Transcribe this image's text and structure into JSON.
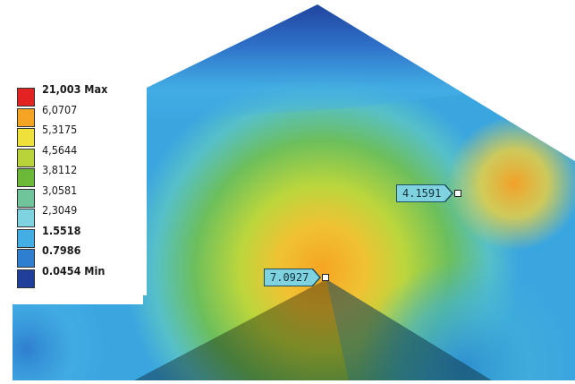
{
  "legend": {
    "colors": [
      "#e32322",
      "#f5a523",
      "#f0e03a",
      "#b8d43a",
      "#6cb93a",
      "#6fc49a",
      "#7fd3e0",
      "#43aee4",
      "#2e7fcf",
      "#1f3f9a"
    ],
    "labels": [
      {
        "text": "21,003 Max",
        "bold": true
      },
      {
        "text": "6,0707",
        "bold": false
      },
      {
        "text": "5,3175",
        "bold": false
      },
      {
        "text": "4,5644",
        "bold": false
      },
      {
        "text": "3,8112",
        "bold": false
      },
      {
        "text": "3,0581",
        "bold": false
      },
      {
        "text": "2,3049",
        "bold": false
      },
      {
        "text": "1.5518",
        "bold": true
      },
      {
        "text": "0.7986",
        "bold": true
      },
      {
        "text": "0.0454 Min",
        "bold": true
      }
    ]
  },
  "probes": [
    {
      "value": "4.1591"
    },
    {
      "value": "7.0927"
    }
  ]
}
